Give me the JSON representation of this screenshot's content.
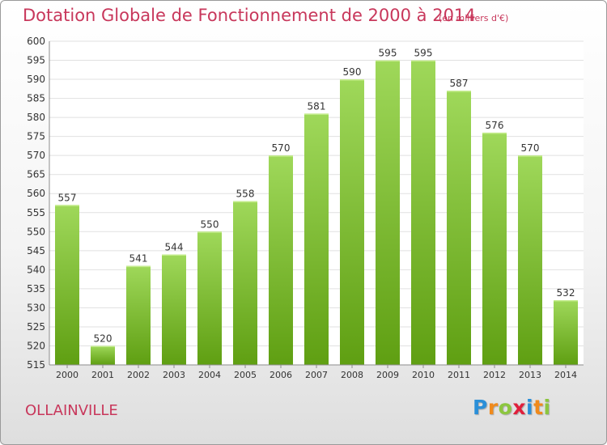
{
  "title": "Dotation Globale de Fonctionnement de 2000 à 2014",
  "unit_note": "(en milliers d'€)",
  "commune": "OLLAINVILLE",
  "logo": {
    "text": "Proxiti",
    "letters": [
      {
        "ch": "P",
        "color": "#2b8fd8"
      },
      {
        "ch": "r",
        "color": "#f08a1c"
      },
      {
        "ch": "o",
        "color": "#8cc63f"
      },
      {
        "ch": "x",
        "color": "#e0203c"
      },
      {
        "ch": "i",
        "color": "#2b8fd8"
      },
      {
        "ch": "t",
        "color": "#f08a1c"
      },
      {
        "ch": "i",
        "color": "#8cc63f"
      }
    ]
  },
  "colors": {
    "title": "#c8375b",
    "bar_top": "#9fd85a",
    "bar_bottom": "#5f9f12",
    "grid": "#e1e1e1",
    "axis": "#8c8c8c"
  },
  "chart_data": {
    "type": "bar",
    "categories": [
      "2000",
      "2001",
      "2002",
      "2003",
      "2004",
      "2005",
      "2006",
      "2007",
      "2008",
      "2009",
      "2010",
      "2011",
      "2012",
      "2013",
      "2014"
    ],
    "values": [
      557,
      520,
      541,
      544,
      550,
      558,
      570,
      581,
      590,
      595,
      595,
      587,
      576,
      570,
      532
    ],
    "title": "Dotation Globale de Fonctionnement de 2000 à 2014",
    "xlabel": "",
    "ylabel": "",
    "ylim": [
      515,
      600
    ],
    "yticks": [
      515,
      520,
      525,
      530,
      535,
      540,
      545,
      550,
      555,
      560,
      565,
      570,
      575,
      580,
      585,
      590,
      595,
      600
    ],
    "grid": true,
    "data_labels": true
  }
}
